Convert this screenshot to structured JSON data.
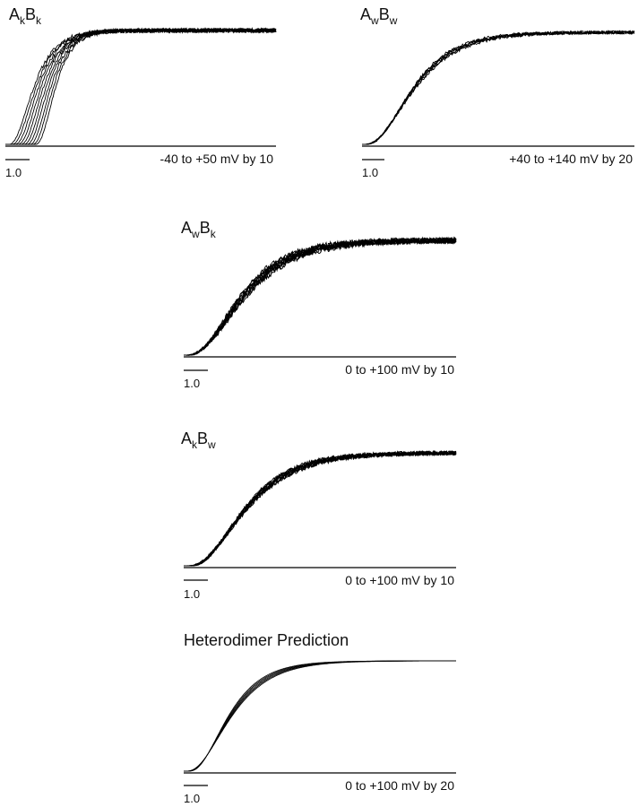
{
  "chart_data": [
    {
      "type": "line",
      "title_parts": [
        "A",
        "k",
        "B",
        "k"
      ],
      "xlabel": "-40 to +50 mV by 10",
      "scale_label": "1.0",
      "traces": 10,
      "trace_params": {
        "delay_first": 0.05,
        "delay_last": 0.55,
        "tau_first": 0.3,
        "tau_last": 0.24,
        "noise": 0.018,
        "seed": 11
      },
      "color": "#000000"
    },
    {
      "type": "line",
      "title_parts": [
        "A",
        "w",
        "B",
        "w"
      ],
      "xlabel": "+40 to +140 mV by 20",
      "scale_label": "1.0",
      "traces": 6,
      "trace_params": {
        "delay_first": 0.0,
        "delay_last": 0.06,
        "tau_first": 0.62,
        "tau_last": 0.55,
        "noise": 0.014,
        "seed": 23
      },
      "color": "#000000"
    },
    {
      "type": "line",
      "title_parts": [
        "A",
        "w",
        "B",
        "k"
      ],
      "xlabel": "0 to +100 mV by 10",
      "scale_label": "1.0",
      "traces": 11,
      "trace_params": {
        "delay_first": 0.0,
        "delay_last": 0.07,
        "tau_first": 0.72,
        "tau_last": 0.6,
        "noise": 0.025,
        "seed": 37
      },
      "color": "#000000"
    },
    {
      "type": "line",
      "title_parts": [
        "A",
        "k",
        "B",
        "w"
      ],
      "xlabel": "0 to +100 mV by 10",
      "scale_label": "1.0",
      "traces": 11,
      "trace_params": {
        "delay_first": 0.03,
        "delay_last": 0.12,
        "tau_first": 0.72,
        "tau_last": 0.62,
        "noise": 0.018,
        "seed": 53
      },
      "color": "#000000"
    },
    {
      "type": "line",
      "title_parts": [
        "Heterodimer Prediction"
      ],
      "xlabel": "0 to +100 mV by 20",
      "scale_label": "1.0",
      "traces": 6,
      "trace_params": {
        "delay_first": 0.02,
        "delay_last": 0.08,
        "tau_first": 0.55,
        "tau_last": 0.47,
        "noise": 0.0,
        "seed": 71
      },
      "color": "#000000"
    }
  ]
}
